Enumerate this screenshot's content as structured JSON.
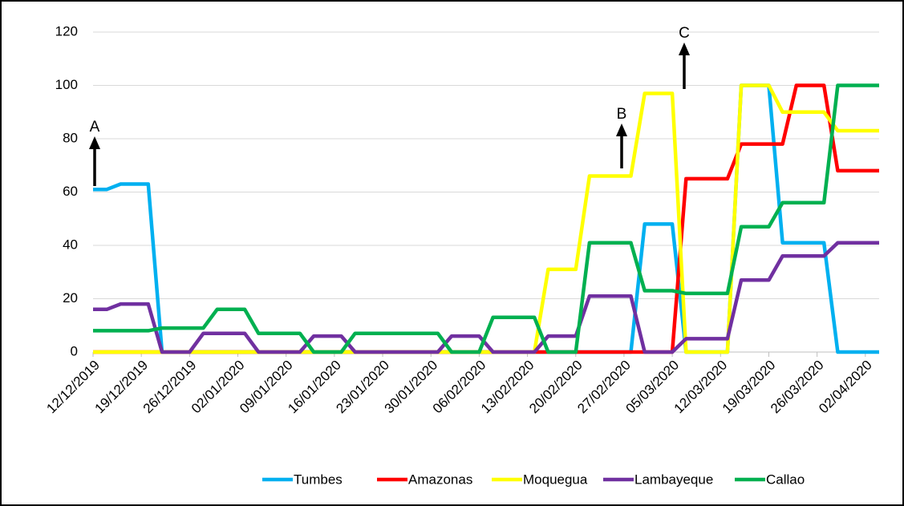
{
  "chart_data": {
    "type": "line",
    "x": [
      "12/12/2019",
      "14/12/2019",
      "16/12/2019",
      "18/12/2019",
      "20/12/2019",
      "22/12/2019",
      "24/12/2019",
      "26/12/2019",
      "28/12/2019",
      "30/12/2019",
      "01/01/2020",
      "03/01/2020",
      "05/01/2020",
      "07/01/2020",
      "09/01/2020",
      "11/01/2020",
      "13/01/2020",
      "15/01/2020",
      "17/01/2020",
      "19/01/2020",
      "21/01/2020",
      "23/01/2020",
      "25/01/2020",
      "27/01/2020",
      "29/01/2020",
      "31/01/2020",
      "02/02/2020",
      "04/02/2020",
      "06/02/2020",
      "08/02/2020",
      "10/02/2020",
      "12/02/2020",
      "14/02/2020",
      "16/02/2020",
      "18/02/2020",
      "20/02/2020",
      "22/02/2020",
      "24/02/2020",
      "26/02/2020",
      "28/02/2020",
      "01/03/2020",
      "03/03/2020",
      "05/03/2020",
      "07/03/2020",
      "09/03/2020",
      "11/03/2020",
      "13/03/2020",
      "15/03/2020",
      "17/03/2020",
      "19/03/2020",
      "21/03/2020",
      "23/03/2020",
      "25/03/2020",
      "27/03/2020",
      "29/03/2020",
      "31/03/2020",
      "02/04/2020",
      "04/04/2020"
    ],
    "series": [
      {
        "name": "Tumbes",
        "color": "#00b0f0",
        "values": [
          61,
          61,
          63,
          63,
          63,
          0,
          0,
          0,
          0,
          0,
          0,
          0,
          0,
          0,
          0,
          0,
          0,
          0,
          0,
          0,
          0,
          0,
          0,
          0,
          0,
          0,
          0,
          0,
          0,
          0,
          0,
          0,
          0,
          0,
          0,
          0,
          0,
          0,
          0,
          0,
          48,
          48,
          48,
          0,
          0,
          0,
          0,
          100,
          100,
          100,
          41,
          41,
          41,
          41,
          0,
          0,
          0,
          0
        ]
      },
      {
        "name": "Amazonas",
        "color": "#ff0000",
        "values": [
          0,
          0,
          0,
          0,
          0,
          0,
          0,
          0,
          0,
          0,
          0,
          0,
          0,
          0,
          0,
          0,
          0,
          0,
          0,
          0,
          0,
          0,
          0,
          0,
          0,
          0,
          0,
          0,
          0,
          0,
          0,
          0,
          0,
          0,
          0,
          0,
          0,
          0,
          0,
          0,
          0,
          0,
          0,
          65,
          65,
          65,
          65,
          78,
          78,
          78,
          78,
          100,
          100,
          100,
          68,
          68,
          68,
          68
        ]
      },
      {
        "name": "Moquegua",
        "color": "#ffff00",
        "values": [
          0,
          0,
          0,
          0,
          0,
          0,
          0,
          0,
          0,
          0,
          0,
          0,
          0,
          0,
          0,
          0,
          0,
          0,
          0,
          0,
          0,
          0,
          0,
          0,
          0,
          0,
          0,
          0,
          0,
          0,
          0,
          0,
          0,
          31,
          31,
          31,
          66,
          66,
          66,
          66,
          97,
          97,
          97,
          0,
          0,
          0,
          0,
          100,
          100,
          100,
          90,
          90,
          90,
          90,
          83,
          83,
          83,
          83
        ]
      },
      {
        "name": "Lambayeque",
        "color": "#7030a0",
        "values": [
          16,
          16,
          18,
          18,
          18,
          0,
          0,
          0,
          7,
          7,
          7,
          7,
          0,
          0,
          0,
          0,
          6,
          6,
          6,
          0,
          0,
          0,
          0,
          0,
          0,
          0,
          6,
          6,
          6,
          0,
          0,
          0,
          0,
          6,
          6,
          6,
          21,
          21,
          21,
          21,
          0,
          0,
          0,
          5,
          5,
          5,
          5,
          27,
          27,
          27,
          36,
          36,
          36,
          36,
          41,
          41,
          41,
          41
        ]
      },
      {
        "name": "Callao",
        "color": "#00b050",
        "values": [
          8,
          8,
          8,
          8,
          8,
          9,
          9,
          9,
          9,
          16,
          16,
          16,
          7,
          7,
          7,
          7,
          0,
          0,
          0,
          7,
          7,
          7,
          7,
          7,
          7,
          7,
          0,
          0,
          0,
          13,
          13,
          13,
          13,
          0,
          0,
          0,
          41,
          41,
          41,
          41,
          23,
          23,
          23,
          22,
          22,
          22,
          22,
          47,
          47,
          47,
          56,
          56,
          56,
          56,
          100,
          100,
          100,
          100
        ]
      }
    ],
    "xlim": [
      "12/12/2019",
      "04/04/2020"
    ],
    "xticks": [
      "12/12/2019",
      "19/12/2019",
      "26/12/2019",
      "02/01/2020",
      "09/01/2020",
      "16/01/2020",
      "23/01/2020",
      "30/01/2020",
      "06/02/2020",
      "13/02/2020",
      "20/02/2020",
      "27/02/2020",
      "05/03/2020",
      "12/03/2020",
      "19/03/2020",
      "26/03/2020",
      "02/04/2020"
    ],
    "ylim": [
      0,
      120
    ],
    "yticks": [
      0,
      20,
      40,
      60,
      80,
      100,
      120
    ],
    "grid": true,
    "legend": "bottom",
    "annotations": [
      "A",
      "B",
      "C"
    ]
  }
}
